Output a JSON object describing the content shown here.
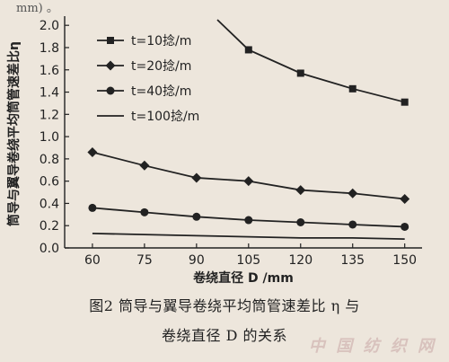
{
  "top_bleed_text": "mm) 。",
  "caption": {
    "line1": "图2   筒导与翼导卷绕平均筒管速差比 η 与",
    "line2": "卷绕直径 D 的关系"
  },
  "watermark": "中 国 纺 织 网",
  "chart_data": {
    "type": "line",
    "title": "",
    "xlabel": "卷绕直径 D /mm",
    "ylabel": "筒导与翼导卷绕平均筒管速差比η",
    "x": [
      60,
      75,
      90,
      105,
      120,
      135,
      150
    ],
    "xticks": [
      "60",
      "75",
      "90",
      "105",
      "120",
      "135",
      "150"
    ],
    "yticks": [
      "0.0",
      "0.2",
      "0.4",
      "0.6",
      "0.8",
      "1.0",
      "1.2",
      "1.4",
      "1.6",
      "1.8",
      "2.0"
    ],
    "xlim": [
      52,
      155
    ],
    "ylim": [
      0,
      2.05
    ],
    "grid": false,
    "legend_position": "top-left",
    "series": [
      {
        "name": "t=10捻/m",
        "marker": "square",
        "x": [
          96,
          105,
          120,
          135,
          150
        ],
        "values": [
          2.05,
          1.78,
          1.57,
          1.43,
          1.31
        ]
      },
      {
        "name": "t=20捻/m",
        "marker": "diamond",
        "x": [
          60,
          75,
          90,
          105,
          120,
          135,
          150
        ],
        "values": [
          0.86,
          0.74,
          0.63,
          0.6,
          0.52,
          0.49,
          0.44
        ]
      },
      {
        "name": "t=40捻/m",
        "marker": "circle",
        "x": [
          60,
          75,
          90,
          105,
          120,
          135,
          150
        ],
        "values": [
          0.36,
          0.32,
          0.28,
          0.25,
          0.23,
          0.21,
          0.19
        ]
      },
      {
        "name": "t=100捻/m",
        "marker": "none",
        "x": [
          60,
          75,
          90,
          105,
          120,
          135,
          150
        ],
        "values": [
          0.13,
          0.12,
          0.11,
          0.1,
          0.09,
          0.09,
          0.08
        ]
      }
    ]
  },
  "colors": {
    "background": "#ede6dc",
    "ink": "#222222"
  }
}
